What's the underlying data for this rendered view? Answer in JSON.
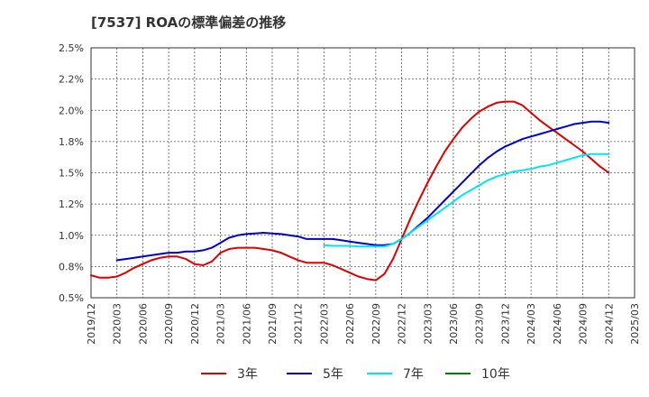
{
  "chart_data": {
    "type": "line",
    "title": "[7537]  ROAの標準偏差の推移",
    "xlabel": "",
    "ylabel": "",
    "ylim": [
      0.5,
      2.5
    ],
    "yticks": [
      "0.5%",
      "0.8%",
      "1.0%",
      "1.2%",
      "1.5%",
      "1.8%",
      "2.0%",
      "2.2%",
      "2.5%"
    ],
    "ytick_values": [
      0.5,
      0.75,
      1.0,
      1.25,
      1.5,
      1.75,
      2.0,
      2.25,
      2.5
    ],
    "xticks": [
      "2019/12",
      "2020/03",
      "2020/06",
      "2020/09",
      "2020/12",
      "2021/03",
      "2021/06",
      "2021/09",
      "2021/12",
      "2022/03",
      "2022/06",
      "2022/09",
      "2022/12",
      "2023/03",
      "2023/06",
      "2023/09",
      "2023/12",
      "2024/03",
      "2024/06",
      "2024/09",
      "2024/12",
      "2025/03"
    ],
    "grid": true,
    "legend_position": "bottom",
    "series": [
      {
        "name": "3年",
        "color": "#dd0000",
        "x": [
          "2019/12",
          "2020/01",
          "2020/02",
          "2020/03",
          "2020/04",
          "2020/05",
          "2020/06",
          "2020/07",
          "2020/08",
          "2020/09",
          "2020/10",
          "2020/11",
          "2020/12",
          "2021/01",
          "2021/02",
          "2021/03",
          "2021/04",
          "2021/05",
          "2021/06",
          "2021/07",
          "2021/08",
          "2021/09",
          "2021/10",
          "2021/11",
          "2021/12",
          "2022/01",
          "2022/02",
          "2022/03",
          "2022/04",
          "2022/05",
          "2022/06",
          "2022/07",
          "2022/08",
          "2022/09",
          "2022/10",
          "2022/11",
          "2022/12",
          "2023/01",
          "2023/02",
          "2023/03",
          "2023/04",
          "2023/05",
          "2023/06",
          "2023/07",
          "2023/08",
          "2023/09",
          "2023/10",
          "2023/11",
          "2023/12",
          "2024/01",
          "2024/02",
          "2024/03",
          "2024/04",
          "2024/05",
          "2024/06",
          "2024/07",
          "2024/08",
          "2024/09",
          "2024/10",
          "2024/11",
          "2024/12"
        ],
        "values": [
          0.68,
          0.66,
          0.66,
          0.67,
          0.7,
          0.74,
          0.77,
          0.8,
          0.82,
          0.83,
          0.83,
          0.81,
          0.77,
          0.76,
          0.79,
          0.86,
          0.89,
          0.9,
          0.9,
          0.9,
          0.89,
          0.88,
          0.86,
          0.83,
          0.8,
          0.78,
          0.78,
          0.78,
          0.76,
          0.73,
          0.7,
          0.67,
          0.65,
          0.64,
          0.69,
          0.81,
          0.97,
          1.13,
          1.28,
          1.42,
          1.55,
          1.67,
          1.77,
          1.86,
          1.93,
          1.99,
          2.03,
          2.06,
          2.07,
          2.07,
          2.04,
          1.98,
          1.92,
          1.87,
          1.82,
          1.77,
          1.72,
          1.67,
          1.61,
          1.55,
          1.5
        ]
      },
      {
        "name": "5年",
        "color": "#0000cc",
        "x": [
          "2020/03",
          "2020/04",
          "2020/05",
          "2020/06",
          "2020/07",
          "2020/08",
          "2020/09",
          "2020/10",
          "2020/11",
          "2020/12",
          "2021/01",
          "2021/02",
          "2021/03",
          "2021/04",
          "2021/05",
          "2021/06",
          "2021/07",
          "2021/08",
          "2021/09",
          "2021/10",
          "2021/11",
          "2021/12",
          "2022/01",
          "2022/02",
          "2022/03",
          "2022/04",
          "2022/05",
          "2022/06",
          "2022/07",
          "2022/08",
          "2022/09",
          "2022/10",
          "2022/11",
          "2022/12",
          "2023/01",
          "2023/02",
          "2023/03",
          "2023/04",
          "2023/05",
          "2023/06",
          "2023/07",
          "2023/08",
          "2023/09",
          "2023/10",
          "2023/11",
          "2023/12",
          "2024/01",
          "2024/02",
          "2024/03",
          "2024/04",
          "2024/05",
          "2024/06",
          "2024/07",
          "2024/08",
          "2024/09",
          "2024/10",
          "2024/11",
          "2024/12"
        ],
        "values": [
          0.8,
          0.81,
          0.82,
          0.83,
          0.84,
          0.85,
          0.86,
          0.86,
          0.87,
          0.87,
          0.88,
          0.9,
          0.94,
          0.98,
          1.0,
          1.01,
          1.015,
          1.02,
          1.015,
          1.01,
          1.0,
          0.99,
          0.97,
          0.97,
          0.97,
          0.97,
          0.96,
          0.95,
          0.94,
          0.93,
          0.92,
          0.92,
          0.93,
          0.97,
          1.02,
          1.08,
          1.14,
          1.21,
          1.28,
          1.35,
          1.42,
          1.49,
          1.56,
          1.62,
          1.67,
          1.71,
          1.74,
          1.77,
          1.79,
          1.81,
          1.83,
          1.85,
          1.87,
          1.89,
          1.9,
          1.91,
          1.91,
          1.9
        ]
      },
      {
        "name": "7年",
        "color": "#00e5ee",
        "x": [
          "2022/03",
          "2022/04",
          "2022/05",
          "2022/06",
          "2022/07",
          "2022/08",
          "2022/09",
          "2022/10",
          "2022/11",
          "2022/12",
          "2023/01",
          "2023/02",
          "2023/03",
          "2023/04",
          "2023/05",
          "2023/06",
          "2023/07",
          "2023/08",
          "2023/09",
          "2023/10",
          "2023/11",
          "2023/12",
          "2024/01",
          "2024/02",
          "2024/03",
          "2024/04",
          "2024/05",
          "2024/06",
          "2024/07",
          "2024/08",
          "2024/09",
          "2024/10",
          "2024/11",
          "2024/12"
        ],
        "values": [
          0.92,
          0.915,
          0.915,
          0.915,
          0.91,
          0.91,
          0.91,
          0.91,
          0.93,
          0.97,
          1.02,
          1.07,
          1.12,
          1.17,
          1.22,
          1.27,
          1.32,
          1.36,
          1.4,
          1.44,
          1.47,
          1.49,
          1.51,
          1.52,
          1.53,
          1.55,
          1.56,
          1.58,
          1.6,
          1.62,
          1.64,
          1.65,
          1.65,
          1.65
        ]
      },
      {
        "name": "10年",
        "color": "#008000",
        "x": [],
        "values": []
      }
    ]
  }
}
